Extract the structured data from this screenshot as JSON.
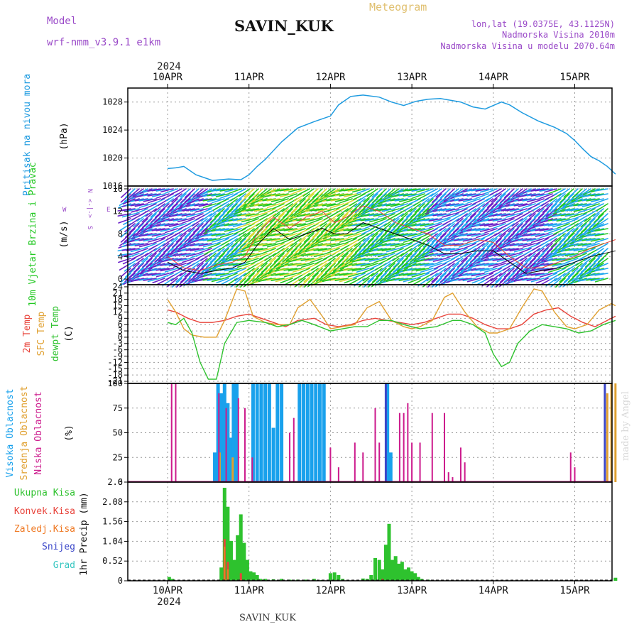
{
  "header": {
    "model_label": "Model",
    "model_name": "wrf-nmm_v3.9.1 e1km",
    "station": "SAVIN_KUK",
    "meteogram_label": "Meteogram",
    "lonlat": "lon,lat (19.0375E, 43.1125N)",
    "altitude": "Nadmorska Visina 2010m",
    "model_altitude": "Nadmorska Visina u modelu 2070.64m",
    "year": "2024",
    "footer_station": "SAVIN_KUK",
    "credit": "made by Angel"
  },
  "compass": {
    "n": "N",
    "e": "E",
    "w": "W",
    "s": "S",
    "arrows": "<-|->"
  },
  "days": [
    "10APR",
    "11APR",
    "12APR",
    "13APR",
    "14APR",
    "15APR"
  ],
  "colors": {
    "pressure": "#1e9be0",
    "temp": "#e8433a",
    "sfc": "#e0a030",
    "dewpt": "#2ec22e",
    "high": "#19a1ec",
    "mid": "#e0a030",
    "low": "#cc1a8c",
    "precip_total": "#2ec22e",
    "precip_conv": "#e8433a",
    "precip_ice": "#ef7a25",
    "snow": "#3a46c8",
    "grad": "#35c6c0",
    "wind_purple": "#6a20c8",
    "wind_blue": "#1ea6f0",
    "wind_green": "#22c822",
    "wind_yellow": "#d8d830",
    "wind_speed_line": "#000000",
    "gust_line": "#e8433a",
    "label_violet": "#9a4ac8"
  },
  "chart_data": [
    {
      "type": "line",
      "name": "pressure",
      "ylabel": "Pritisak na nivou mora",
      "unit": "(hPa)",
      "ylim": [
        1016,
        1030
      ],
      "yticks": [
        "1016",
        "1020",
        "1024",
        "1028"
      ],
      "x_days": [
        0.0,
        0.1,
        0.2,
        0.35,
        0.55,
        0.75,
        0.9,
        1.0,
        1.1,
        1.2,
        1.4,
        1.6,
        1.8,
        2.0,
        2.1,
        2.25,
        2.4,
        2.6,
        2.75,
        2.9,
        3.05,
        3.2,
        3.35,
        3.5,
        3.6,
        3.75,
        3.9,
        4.0,
        4.1,
        4.2,
        4.35,
        4.55,
        4.75,
        4.9,
        5.0,
        5.1,
        5.2,
        5.3,
        5.4,
        5.5
      ],
      "values": [
        1018.5,
        1018.6,
        1018.8,
        1017.6,
        1016.8,
        1017.0,
        1016.9,
        1017.6,
        1018.8,
        1019.8,
        1022.3,
        1024.3,
        1025.2,
        1026.0,
        1027.6,
        1028.8,
        1029.0,
        1028.7,
        1028.0,
        1027.5,
        1028.1,
        1028.4,
        1028.5,
        1028.2,
        1028.0,
        1027.3,
        1027.0,
        1027.5,
        1028.0,
        1027.6,
        1026.5,
        1025.3,
        1024.4,
        1023.5,
        1022.5,
        1021.3,
        1020.2,
        1019.6,
        1018.8,
        1017.7
      ]
    },
    {
      "type": "scatter",
      "name": "wind",
      "ylabel": "10m Vjetar Brzina i Pravac",
      "unit": "(m/s)",
      "ylim": [
        -1,
        16.5
      ],
      "yticks": [
        "0",
        "4",
        "8",
        "12",
        "16"
      ],
      "x_days": [
        0.0,
        0.2,
        0.4,
        0.6,
        0.8,
        0.95,
        1.1,
        1.3,
        1.5,
        1.7,
        1.9,
        2.05,
        2.2,
        2.4,
        2.6,
        2.8,
        3.0,
        3.2,
        3.4,
        3.6,
        3.8,
        4.0,
        4.2,
        4.4,
        4.6,
        4.8,
        5.0,
        5.2,
        5.5
      ],
      "speed": [
        3.0,
        1.5,
        1.0,
        1.5,
        2.0,
        3.0,
        6.0,
        9.0,
        7.0,
        8.0,
        9.0,
        8.0,
        8.0,
        10.0,
        9.0,
        8.0,
        7.0,
        6.0,
        4.5,
        4.5,
        5.0,
        5.0,
        3.0,
        1.0,
        1.5,
        2.0,
        3.0,
        4.0,
        5.0
      ],
      "gust": [
        4.0,
        2.0,
        1.5,
        2.5,
        3.0,
        4.0,
        8.0,
        11.0,
        9.0,
        11.0,
        12.0,
        10.0,
        11.0,
        13.0,
        12.0,
        10.0,
        9.0,
        8.0,
        6.0,
        6.0,
        7.0,
        6.5,
        4.0,
        2.0,
        2.0,
        3.0,
        4.0,
        5.5,
        7.0
      ]
    },
    {
      "type": "line",
      "name": "temperature",
      "ylabel_lines": [
        "2m Temp",
        "SFC Temp",
        "dewpt Temp"
      ],
      "unit": "(C)",
      "ylim": [
        -22,
        25
      ],
      "yticks": [
        "-21",
        "-18",
        "-15",
        "-12",
        "-9",
        "-6",
        "-3",
        "0",
        "3",
        "6",
        "9",
        "12",
        "15",
        "18",
        "21",
        "24"
      ],
      "series": [
        {
          "name": "2m Temp",
          "x_days": [
            0.0,
            0.1,
            0.25,
            0.4,
            0.55,
            0.7,
            0.85,
            1.0,
            1.15,
            1.3,
            1.45,
            1.6,
            1.8,
            1.95,
            2.1,
            2.25,
            2.4,
            2.55,
            2.7,
            2.85,
            3.0,
            3.15,
            3.3,
            3.45,
            3.6,
            3.75,
            3.9,
            4.05,
            4.2,
            4.35,
            4.5,
            4.65,
            4.8,
            4.95,
            5.1,
            5.25,
            5.4,
            5.5
          ],
          "values": [
            13,
            12,
            9,
            7,
            7,
            8,
            10,
            11,
            9,
            7,
            5,
            8,
            9,
            6,
            5,
            6,
            8,
            9,
            8,
            7,
            6,
            7,
            9,
            11,
            11,
            9,
            6,
            4,
            4,
            6,
            11,
            13,
            14,
            10,
            7,
            5,
            8,
            10
          ]
        },
        {
          "name": "SFC Temp",
          "x_days": [
            0.0,
            0.1,
            0.2,
            0.3,
            0.45,
            0.6,
            0.7,
            0.85,
            0.95,
            1.05,
            1.2,
            1.35,
            1.5,
            1.6,
            1.75,
            1.9,
            2.0,
            2.15,
            2.3,
            2.45,
            2.6,
            2.75,
            2.9,
            3.0,
            3.1,
            3.25,
            3.4,
            3.5,
            3.65,
            3.8,
            3.95,
            4.05,
            4.2,
            4.35,
            4.5,
            4.6,
            4.75,
            4.9,
            5.0,
            5.15,
            5.3,
            5.45,
            5.5
          ],
          "values": [
            18,
            12,
            4,
            1,
            0,
            0,
            8,
            23,
            22,
            10,
            7,
            6,
            6,
            14,
            18,
            10,
            4,
            5,
            6,
            14,
            17,
            8,
            5,
            4,
            5,
            8,
            19,
            21,
            12,
            5,
            2,
            2,
            4,
            14,
            23,
            22,
            12,
            5,
            4,
            6,
            13,
            16,
            15
          ]
        },
        {
          "name": "dewpt Temp",
          "x_days": [
            0.0,
            0.1,
            0.2,
            0.3,
            0.4,
            0.5,
            0.6,
            0.7,
            0.85,
            1.0,
            1.2,
            1.35,
            1.5,
            1.65,
            1.8,
            2.0,
            2.15,
            2.3,
            2.45,
            2.6,
            2.75,
            2.9,
            3.1,
            3.3,
            3.5,
            3.6,
            3.75,
            3.9,
            4.0,
            4.1,
            4.2,
            4.3,
            4.45,
            4.6,
            4.75,
            4.9,
            5.05,
            5.2,
            5.35,
            5.5
          ],
          "values": [
            7,
            6,
            9,
            2,
            -12,
            -20,
            -20,
            -3,
            7,
            8,
            7,
            5,
            6,
            8,
            6,
            3,
            4,
            5,
            5,
            8,
            8,
            6,
            4,
            5,
            8,
            8,
            6,
            2,
            -8,
            -14,
            -12,
            -3,
            3,
            6,
            5,
            4,
            2,
            3,
            6,
            8
          ]
        }
      ]
    },
    {
      "type": "bar",
      "name": "cloud",
      "ylabel_lines": [
        "Visoka Oblacnost",
        "Srednja Oblacnost",
        "Niska Oblacnost"
      ],
      "unit": "(%)",
      "ylim": [
        0,
        100
      ],
      "yticks": [
        "0",
        "25",
        "50",
        "75",
        "100"
      ],
      "series": [
        {
          "name": "Visoka Oblacnost",
          "x_days": [
            0.58,
            0.62,
            0.66,
            0.7,
            0.74,
            0.77,
            0.81,
            0.85,
            1.05,
            1.1,
            1.15,
            1.2,
            1.25,
            1.3,
            1.35,
            1.4,
            1.62,
            1.67,
            1.72,
            1.77,
            1.82,
            1.87,
            1.92,
            2.7,
            2.74
          ],
          "values": [
            30,
            100,
            90,
            100,
            80,
            45,
            100,
            100,
            100,
            100,
            100,
            100,
            100,
            55,
            100,
            100,
            100,
            100,
            100,
            100,
            100,
            100,
            100,
            100,
            30
          ]
        },
        {
          "name": "Srednja Oblacnost",
          "x_days": [
            0.64,
            0.8,
            5.4,
            5.45,
            5.5
          ],
          "values": [
            30,
            25,
            90,
            100,
            100
          ]
        },
        {
          "name": "Niska Oblacnost",
          "x_days": [
            0.05,
            0.1,
            0.63,
            0.72,
            0.87,
            0.95,
            1.04,
            1.5,
            1.55,
            2.0,
            2.1,
            2.3,
            2.4,
            2.55,
            2.6,
            2.85,
            2.9,
            2.95,
            3.0,
            3.1,
            3.25,
            3.4,
            3.45,
            3.5,
            3.6,
            3.65,
            4.95,
            5.0
          ],
          "values": [
            100,
            100,
            90,
            75,
            85,
            75,
            25,
            50,
            65,
            35,
            15,
            40,
            30,
            75,
            40,
            70,
            70,
            80,
            40,
            40,
            70,
            70,
            10,
            5,
            35,
            20,
            30,
            15
          ]
        },
        {
          "name": "snow-line",
          "x_days": [
            2.68,
            5.37
          ],
          "values": [
            100,
            100
          ]
        }
      ]
    },
    {
      "type": "bar",
      "name": "precipitation",
      "ylabel": "1hr Precip (mm)",
      "legend": [
        "Ukupna Kisa",
        "Konvek.Kisa",
        "Zaledj.Kisa",
        "Snijeg",
        "Grad"
      ],
      "ylim": [
        0,
        2.6
      ],
      "yticks": [
        "0",
        "0.52",
        "1.04",
        "1.56",
        "2.08",
        "2.6"
      ],
      "series": [
        {
          "name": "Ukupna Kisa",
          "x_days": [
            0.02,
            0.06,
            0.66,
            0.7,
            0.74,
            0.78,
            0.82,
            0.86,
            0.9,
            0.94,
            0.98,
            1.02,
            1.06,
            1.1,
            1.14,
            1.2,
            1.3,
            1.4,
            1.5,
            1.6,
            1.7,
            1.8,
            1.9,
            2.0,
            2.05,
            2.1,
            2.15,
            2.4,
            2.45,
            2.5,
            2.55,
            2.6,
            2.64,
            2.68,
            2.72,
            2.76,
            2.8,
            2.84,
            2.88,
            2.92,
            2.96,
            3.0,
            3.04,
            3.08,
            3.12,
            3.2,
            5.5
          ],
          "values": [
            0.1,
            0.05,
            0.35,
            2.45,
            1.95,
            1.05,
            0.55,
            1.2,
            1.75,
            1.0,
            0.55,
            0.25,
            0.22,
            0.15,
            0.05,
            0.05,
            0.04,
            0.05,
            0.03,
            0.03,
            0.03,
            0.05,
            0.02,
            0.2,
            0.22,
            0.15,
            0.05,
            0.06,
            0.05,
            0.15,
            0.6,
            0.55,
            0.3,
            0.95,
            1.5,
            0.55,
            0.65,
            0.45,
            0.5,
            0.3,
            0.35,
            0.25,
            0.2,
            0.1,
            0.05,
            0.03,
            0.08
          ]
        },
        {
          "name": "Konvek.Kisa",
          "x_days": [
            0.7,
            0.74,
            0.9,
            2.64
          ],
          "values": [
            1.1,
            0.5,
            0.2,
            0.05
          ]
        },
        {
          "name": "Zaledj.Kisa",
          "x_days": [
            0.7,
            0.74
          ],
          "values": [
            0.9,
            0.3
          ]
        }
      ]
    }
  ]
}
